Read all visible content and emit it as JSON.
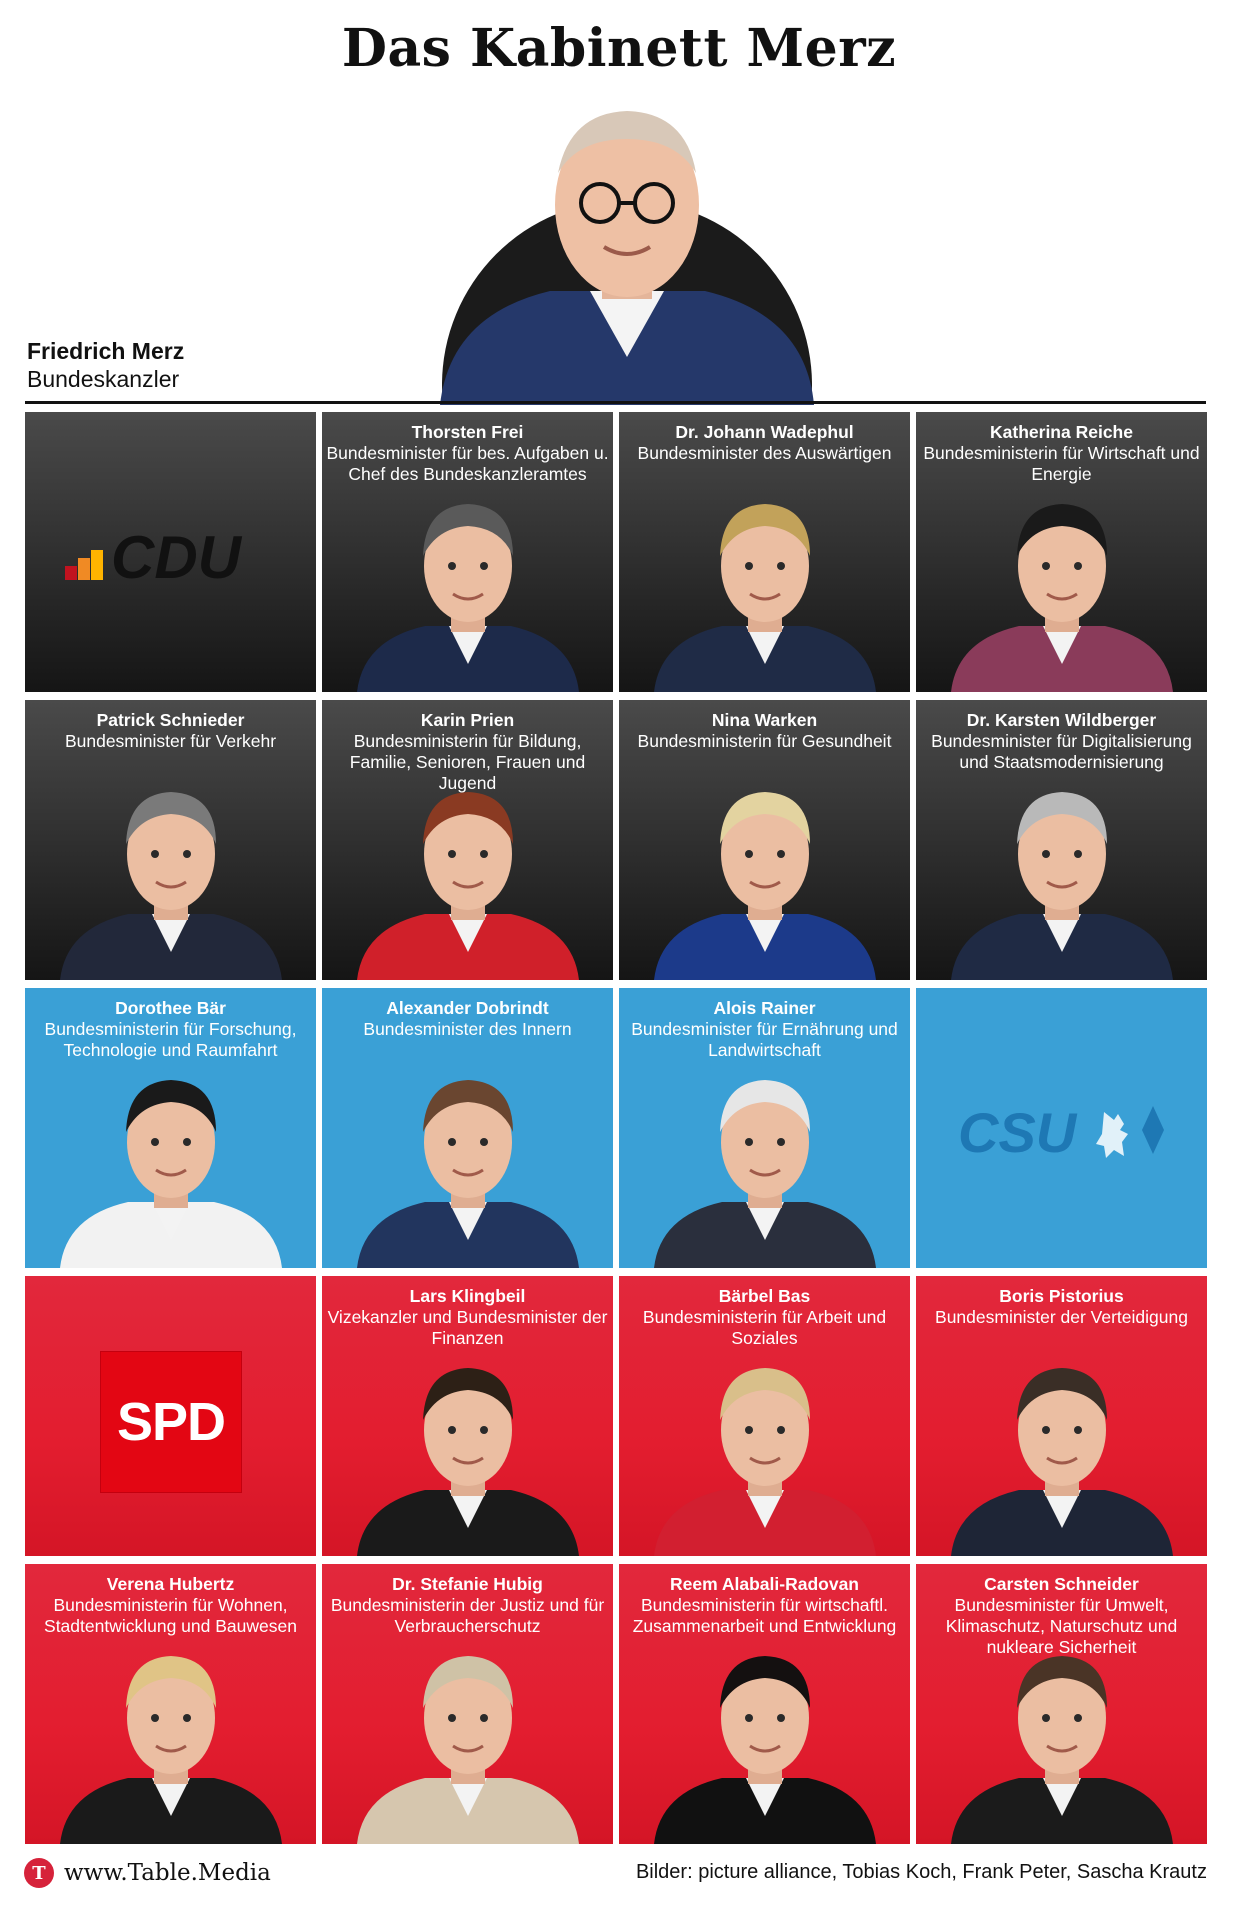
{
  "title": "Das Kabinett Merz",
  "chancellor": {
    "name": "Friedrich Merz",
    "role": "Bundeskanzler"
  },
  "parties": {
    "cdu": "CDU",
    "csu": "CSU",
    "spd": "SPD"
  },
  "colors": {
    "cdu_bg": "#2d2d2d",
    "csu_bg": "#3aa0d6",
    "spd_bg": "#e31d2f",
    "brand_red": "#d6223a"
  },
  "tiles": [
    {
      "type": "logo",
      "party": "cdu"
    },
    {
      "type": "member",
      "party": "cdu",
      "name": "Thorsten Frei",
      "role": "Bundesminister für bes. Aufgaben u. Chef des Bundeskanzleramtes",
      "hair": "#5a5a5a",
      "suit": "#1d2a4a"
    },
    {
      "type": "member",
      "party": "cdu",
      "name": "Dr. Johann Wadephul",
      "role": "Bundesminister des Auswärtigen",
      "hair": "#c2a25a",
      "suit": "#1f2b46"
    },
    {
      "type": "member",
      "party": "cdu",
      "name": "Katherina Reiche",
      "role": "Bundesministerin für Wirtschaft und Energie",
      "hair": "#1a1a1a",
      "suit": "#8a3b5a"
    },
    {
      "type": "member",
      "party": "cdu",
      "name": "Patrick Schnieder",
      "role": "Bundesminister für Verkehr",
      "hair": "#7a7a7a",
      "suit": "#22283a"
    },
    {
      "type": "member",
      "party": "cdu",
      "name": "Karin Prien",
      "role": "Bundesministerin für Bildung, Familie, Senioren, Frauen und Jugend",
      "hair": "#8a3a22",
      "suit": "#d0202a"
    },
    {
      "type": "member",
      "party": "cdu",
      "name": "Nina Warken",
      "role": "Bundesministerin für Gesundheit",
      "hair": "#e3d3a0",
      "suit": "#1c3a8a"
    },
    {
      "type": "member",
      "party": "cdu",
      "name": "Dr. Karsten Wildberger",
      "role": "Bundesminister für Digitalisierung und Staatsmodernisierung",
      "hair": "#b9b9b9",
      "suit": "#1f2a44"
    },
    {
      "type": "member",
      "party": "csu",
      "name": "Dorothee Bär",
      "role": "Bundesministerin für Forschung, Technologie und Raumfahrt",
      "hair": "#1a1a1a",
      "suit": "#f2f2f2"
    },
    {
      "type": "member",
      "party": "csu",
      "name": "Alexander Dobrindt",
      "role": "Bundesminister des Innern",
      "hair": "#6a4630",
      "suit": "#22355e"
    },
    {
      "type": "member",
      "party": "csu",
      "name": "Alois Rainer",
      "role": "Bundesminister für Ernährung und Landwirtschaft",
      "hair": "#e6e6e6",
      "suit": "#2a2f3d"
    },
    {
      "type": "logo",
      "party": "csu"
    },
    {
      "type": "logo",
      "party": "spd"
    },
    {
      "type": "member",
      "party": "spd",
      "name": "Lars Klingbeil",
      "role": "Vizekanzler und Bundesminister der Finanzen",
      "hair": "#2d2016",
      "suit": "#1a1a1a"
    },
    {
      "type": "member",
      "party": "spd",
      "name": "Bärbel Bas",
      "role": "Bundesministerin für Arbeit und Soziales",
      "hair": "#d9bf8a",
      "suit": "#d21f30"
    },
    {
      "type": "member",
      "party": "spd",
      "name": "Boris Pistorius",
      "role": "Bundesminister der Verteidigung",
      "hair": "#3a2e26",
      "suit": "#1e2536"
    },
    {
      "type": "member",
      "party": "spd",
      "name": "Verena Hubertz",
      "role": "Bundesministerin für Wohnen, Stadtentwicklung und Bauwesen",
      "hair": "#e0c486",
      "suit": "#1a1a1a"
    },
    {
      "type": "member",
      "party": "spd",
      "name": "Dr. Stefanie Hubig",
      "role": "Bundesministerin der Justiz und für Verbraucherschutz",
      "hair": "#cfc2a6",
      "suit": "#d6c6ae"
    },
    {
      "type": "member",
      "party": "spd",
      "name": "Reem Alabali-Radovan",
      "role": "Bundesministerin für wirtschaftl. Zusammenarbeit und Entwicklung",
      "hair": "#141010",
      "suit": "#111111"
    },
    {
      "type": "member",
      "party": "spd",
      "name": "Carsten Schneider",
      "role": "Bundesminister für Umwelt, Klimaschutz, Naturschutz und nukleare Sicherheit",
      "hair": "#4a3426",
      "suit": "#1b1b1b"
    }
  ],
  "footer": {
    "brand_icon": "T",
    "brand": "www.Table.Media",
    "credits": "Bilder: picture alliance, Tobias Koch, Frank Peter, Sascha Krautz"
  }
}
